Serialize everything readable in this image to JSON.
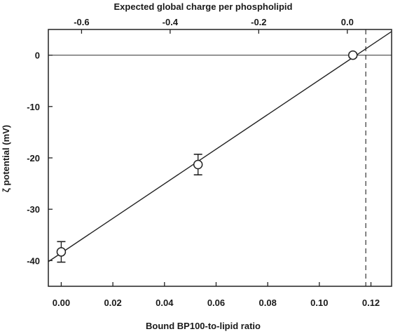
{
  "chart_data": {
    "type": "scatter",
    "xlabel": "Bound BP100-to-lipid ratio",
    "ylabel": "ζ potential (mV)",
    "top_xlabel": "Expected global charge per phospholipid",
    "xlim": [
      -0.005,
      0.128
    ],
    "ylim": [
      -45,
      5
    ],
    "top_xlim": [
      -0.675,
      0.1
    ],
    "x_ticks": [
      0.0,
      0.02,
      0.04,
      0.06,
      0.08,
      0.1,
      0.12
    ],
    "x_tick_labels": [
      "0.00",
      "0.02",
      "0.04",
      "0.06",
      "0.08",
      "0.10",
      "0.12"
    ],
    "y_ticks": [
      0,
      -10,
      -20,
      -30,
      -40
    ],
    "y_tick_labels": [
      "0",
      "-10",
      "-20",
      "-30",
      "-40"
    ],
    "top_ticks": [
      -0.6,
      -0.4,
      -0.2,
      0.0
    ],
    "top_tick_labels": [
      "-0.6",
      "-0.4",
      "-0.2",
      "0.0"
    ],
    "points": [
      {
        "x": 0.0,
        "y": -38.3,
        "err": 2.0
      },
      {
        "x": 0.053,
        "y": -21.3,
        "err": 2.0
      },
      {
        "x": 0.113,
        "y": 0.0,
        "err": 0.4
      }
    ],
    "fit_line": {
      "x": [
        -0.005,
        0.128
      ],
      "y": [
        -40.2,
        4.6
      ]
    },
    "zero_line": 0,
    "vertical_dashed_x": 0.118,
    "grid": false,
    "legend": "none"
  }
}
